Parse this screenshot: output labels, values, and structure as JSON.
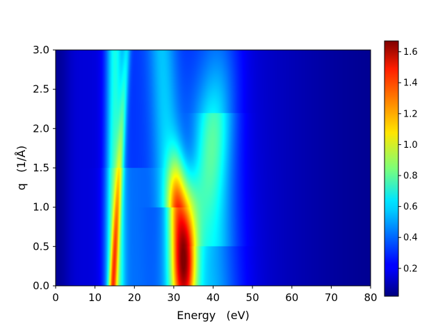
{
  "chart_data": {
    "type": "heatmap",
    "title": "",
    "xlabel": "Energy   (eV)",
    "ylabel": "q   (1/Å)",
    "xlim": [
      0,
      80
    ],
    "ylim": [
      0,
      3.0
    ],
    "x_ticks": [
      "0",
      "10",
      "20",
      "30",
      "40",
      "50",
      "60",
      "70",
      "80"
    ],
    "y_ticks": [
      "0.0",
      "0.5",
      "1.0",
      "1.5",
      "2.0",
      "2.5",
      "3.0"
    ],
    "colormap": "jet",
    "colorbar": {
      "range": [
        0.02,
        1.67
      ],
      "ticks": [
        "0.2",
        "0.4",
        "0.6",
        "0.8",
        "1.0",
        "1.2",
        "1.4",
        "1.6"
      ],
      "placement": "right"
    },
    "features": [
      {
        "name": "low-energy band",
        "energy_eV_at_q0": 14.5,
        "energy_eV_at_q2": 16.5,
        "peak_value": 1.0
      },
      {
        "name": "main resonance",
        "energy_eV": 33,
        "q_range": [
          0,
          1.3
        ],
        "peak_value": 1.65
      },
      {
        "name": "dispersive shoulder",
        "energy_eV_range": [
          36,
          43
        ],
        "q_range": [
          1.0,
          3.0
        ],
        "peak_value": 0.65
      }
    ]
  }
}
